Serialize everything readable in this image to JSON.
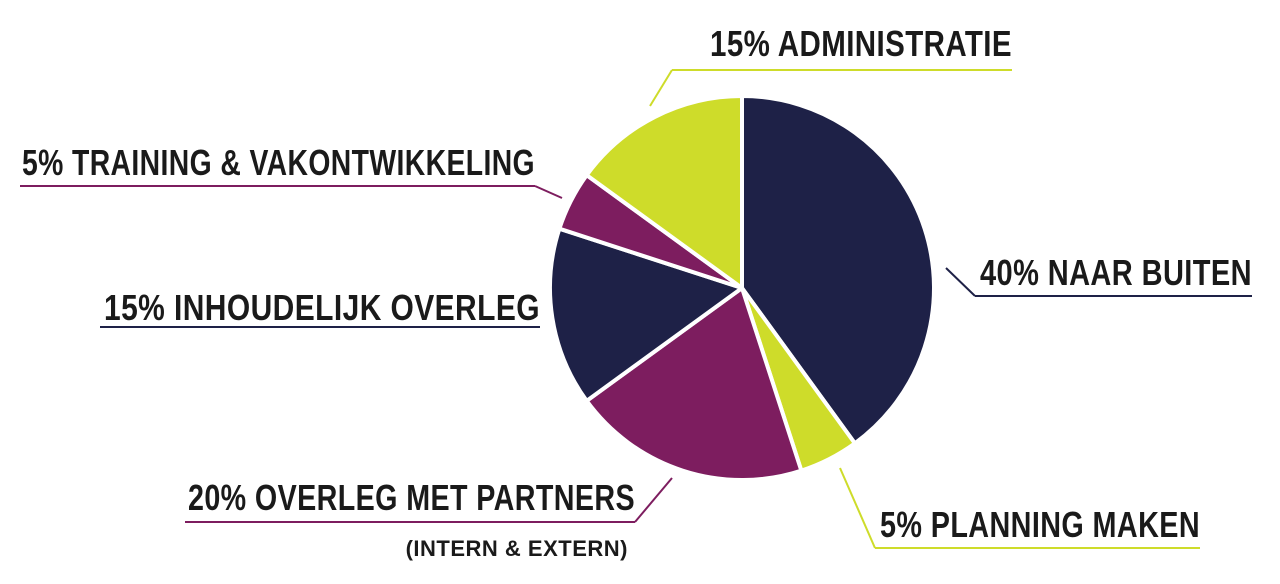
{
  "chart_data": {
    "type": "pie",
    "slices": [
      {
        "value": 40,
        "label": "40% NAAR BUITEN",
        "color": "#1e2147"
      },
      {
        "value": 5,
        "label": "5% PLANNING MAKEN",
        "color": "#cedc2a"
      },
      {
        "value": 20,
        "label": "20% OVERLEG MET PARTNERS",
        "sublabel": "(INTERN & EXTERN)",
        "color": "#7d1d5f"
      },
      {
        "value": 15,
        "label": "15% INHOUDELIJK OVERLEG",
        "color": "#1e2147"
      },
      {
        "value": 5,
        "label": "5% TRAINING & VAKONTWIKKELING",
        "color": "#7d1d5f"
      },
      {
        "value": 15,
        "label": "15% ADMINISTRATIE",
        "color": "#cedc2a"
      }
    ]
  }
}
